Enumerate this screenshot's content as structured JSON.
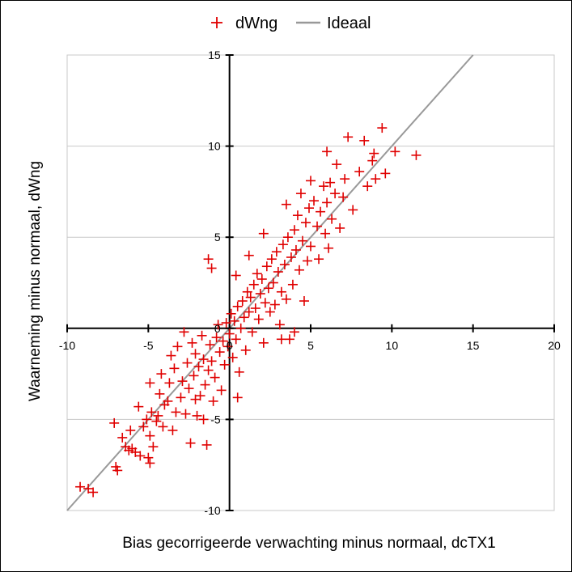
{
  "chart_data": {
    "type": "scatter",
    "xlabel": "Bias gecorrigeerde verwachting minus normaal, dcTX1",
    "ylabel": "Waarneming minus normaal, dWng",
    "xlim": [
      -10,
      20
    ],
    "ylim": [
      -10,
      15
    ],
    "x_ticks": [
      "-10",
      "-5",
      "0",
      "5",
      "10",
      "15",
      "20"
    ],
    "y_ticks": [
      "-10",
      "-5",
      "0",
      "5",
      "10",
      "15"
    ],
    "grid": "horizontal",
    "legend_position": "top",
    "series": [
      {
        "name": "dWng",
        "color": "#e00000",
        "marker": "plus",
        "points": [
          [
            -9.2,
            -8.7
          ],
          [
            -8.7,
            -8.8
          ],
          [
            -8.4,
            -9.0
          ],
          [
            -7.0,
            -7.6
          ],
          [
            -6.9,
            -7.8
          ],
          [
            -7.1,
            -5.2
          ],
          [
            -6.6,
            -6.0
          ],
          [
            -6.4,
            -6.5
          ],
          [
            -6.2,
            -6.7
          ],
          [
            -6.0,
            -6.6
          ],
          [
            -5.8,
            -6.8
          ],
          [
            -5.5,
            -7.0
          ],
          [
            -5.3,
            -5.4
          ],
          [
            -5.1,
            -5.0
          ],
          [
            -5.0,
            -7.1
          ],
          [
            -4.9,
            -7.4
          ],
          [
            -4.9,
            -5.9
          ],
          [
            -4.8,
            -4.6
          ],
          [
            -4.9,
            -3.0
          ],
          [
            -4.7,
            -6.5
          ],
          [
            -4.5,
            -5.1
          ],
          [
            -4.4,
            -4.8
          ],
          [
            -4.3,
            -3.6
          ],
          [
            -4.2,
            -2.5
          ],
          [
            -4.1,
            -5.4
          ],
          [
            -4.0,
            -4.2
          ],
          [
            -3.8,
            -4.0
          ],
          [
            -3.7,
            -3.0
          ],
          [
            -3.6,
            -1.5
          ],
          [
            -3.5,
            -5.6
          ],
          [
            -3.4,
            -2.2
          ],
          [
            -3.3,
            -4.6
          ],
          [
            -3.2,
            -1.0
          ],
          [
            -3.0,
            -3.8
          ],
          [
            -2.9,
            -2.9
          ],
          [
            -2.8,
            -0.2
          ],
          [
            -2.7,
            -4.7
          ],
          [
            -2.6,
            -1.9
          ],
          [
            -2.5,
            -3.3
          ],
          [
            -2.4,
            -6.3
          ],
          [
            -2.3,
            -0.8
          ],
          [
            -2.2,
            -2.6
          ],
          [
            -2.1,
            -1.4
          ],
          [
            -2.0,
            -4.8
          ],
          [
            -1.9,
            -2.1
          ],
          [
            -1.8,
            -3.7
          ],
          [
            -1.7,
            -0.4
          ],
          [
            -1.6,
            -1.7
          ],
          [
            -1.5,
            -3.1
          ],
          [
            -1.4,
            -6.4
          ],
          [
            -1.3,
            -2.3
          ],
          [
            -1.2,
            -0.9
          ],
          [
            -1.1,
            -1.8
          ],
          [
            -1.0,
            -4.0
          ],
          [
            -0.9,
            -2.7
          ],
          [
            -0.8,
            -0.5
          ],
          [
            -0.7,
            0.2
          ],
          [
            -0.6,
            -1.3
          ],
          [
            -0.5,
            -3.4
          ],
          [
            -0.4,
            -0.7
          ],
          [
            -0.3,
            -2.0
          ],
          [
            -0.2,
            0.3
          ],
          [
            -0.1,
            -1.0
          ],
          [
            0.0,
            -0.3
          ],
          [
            0.1,
            0.8
          ],
          [
            0.2,
            -1.6
          ],
          [
            0.3,
            0.4
          ],
          [
            0.4,
            -0.6
          ],
          [
            0.5,
            1.2
          ],
          [
            0.6,
            -2.4
          ],
          [
            0.7,
            0.0
          ],
          [
            0.8,
            1.5
          ],
          [
            0.9,
            0.6
          ],
          [
            1.0,
            -1.2
          ],
          [
            1.1,
            2.0
          ],
          [
            1.2,
            0.9
          ],
          [
            1.3,
            1.7
          ],
          [
            1.4,
            -0.2
          ],
          [
            1.5,
            2.4
          ],
          [
            1.6,
            1.1
          ],
          [
            1.7,
            3.0
          ],
          [
            1.8,
            0.5
          ],
          [
            1.9,
            1.9
          ],
          [
            2.0,
            2.7
          ],
          [
            2.1,
            -0.8
          ],
          [
            2.2,
            1.4
          ],
          [
            2.3,
            3.4
          ],
          [
            2.4,
            2.2
          ],
          [
            2.5,
            0.9
          ],
          [
            2.6,
            3.8
          ],
          [
            2.7,
            2.5
          ],
          [
            2.8,
            1.3
          ],
          [
            2.9,
            4.2
          ],
          [
            3.0,
            3.1
          ],
          [
            3.1,
            0.2
          ],
          [
            3.2,
            2.0
          ],
          [
            3.3,
            4.6
          ],
          [
            3.4,
            3.5
          ],
          [
            3.5,
            1.6
          ],
          [
            3.6,
            5.0
          ],
          [
            3.7,
            -0.6
          ],
          [
            3.8,
            3.9
          ],
          [
            3.9,
            2.4
          ],
          [
            4.0,
            5.4
          ],
          [
            4.1,
            4.3
          ],
          [
            4.2,
            6.2
          ],
          [
            4.3,
            3.2
          ],
          [
            4.4,
            7.4
          ],
          [
            4.5,
            4.8
          ],
          [
            4.6,
            1.5
          ],
          [
            4.7,
            5.8
          ],
          [
            4.8,
            3.7
          ],
          [
            4.9,
            6.6
          ],
          [
            5.0,
            4.5
          ],
          [
            5.2,
            7.0
          ],
          [
            5.4,
            5.6
          ],
          [
            5.5,
            3.8
          ],
          [
            5.6,
            6.4
          ],
          [
            5.8,
            7.8
          ],
          [
            5.9,
            5.2
          ],
          [
            6.0,
            6.9
          ],
          [
            6.1,
            4.4
          ],
          [
            6.2,
            8.0
          ],
          [
            6.3,
            6.0
          ],
          [
            6.5,
            7.4
          ],
          [
            6.6,
            9.0
          ],
          [
            6.8,
            5.5
          ],
          [
            7.0,
            7.2
          ],
          [
            7.1,
            8.2
          ],
          [
            7.3,
            10.5
          ],
          [
            7.6,
            6.5
          ],
          [
            8.0,
            8.6
          ],
          [
            8.3,
            10.3
          ],
          [
            8.5,
            7.8
          ],
          [
            8.9,
            9.6
          ],
          [
            9.0,
            8.2
          ],
          [
            9.4,
            11.0
          ],
          [
            9.6,
            8.5
          ],
          [
            10.2,
            9.7
          ],
          [
            11.5,
            9.5
          ],
          [
            8.8,
            9.2
          ],
          [
            -5.6,
            -4.3
          ],
          [
            -6.1,
            -5.6
          ],
          [
            -2.1,
            -3.9
          ],
          [
            -1.6,
            -5.0
          ],
          [
            0.5,
            -3.8
          ],
          [
            1.2,
            4.0
          ],
          [
            -1.3,
            3.8
          ],
          [
            -1.1,
            3.3
          ],
          [
            0.4,
            2.9
          ],
          [
            2.1,
            5.2
          ],
          [
            3.5,
            6.8
          ],
          [
            5.0,
            8.1
          ],
          [
            6.0,
            9.7
          ],
          [
            3.2,
            -0.6
          ],
          [
            4.0,
            -0.2
          ]
        ]
      },
      {
        "name": "Ideaal",
        "color": "#999999",
        "marker": "line",
        "points": [
          [
            -10,
            -10
          ],
          [
            15,
            15
          ]
        ]
      }
    ]
  }
}
